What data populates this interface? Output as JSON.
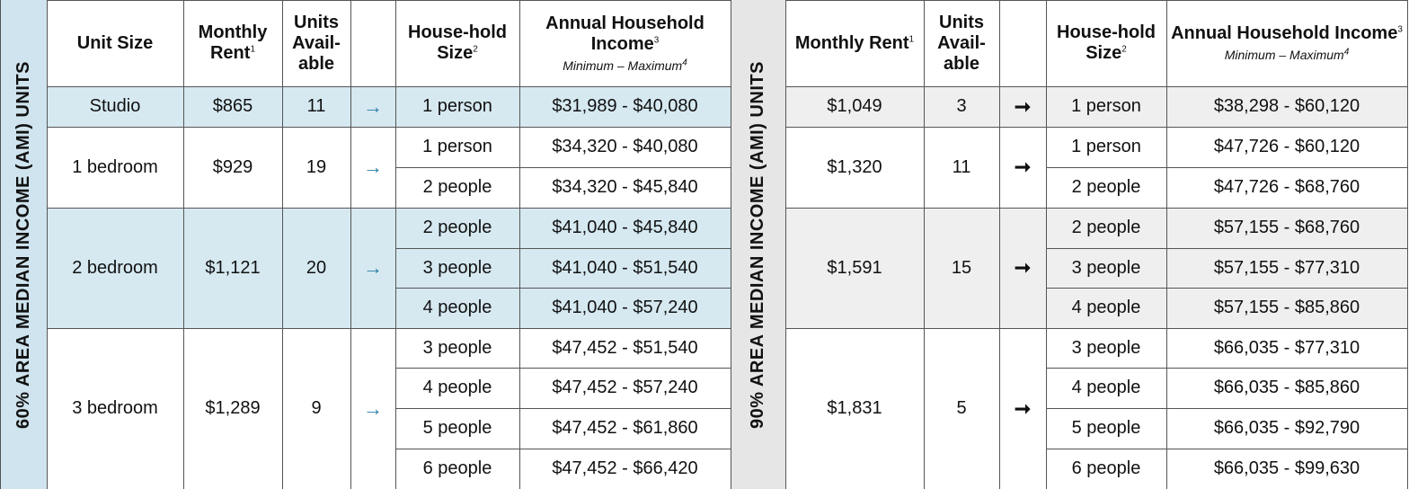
{
  "headers": {
    "unit_size": "Unit Size",
    "monthly_rent": "Monthly Rent",
    "units_available": "Units Avail-able",
    "units_l1": "Units",
    "units_l2": "Avail-",
    "units_l3": "able",
    "household_size": "House-hold Size",
    "annual_income": "Annual Household Income",
    "income_range": "Minimum – Maximum",
    "footnotes": {
      "rent": "1",
      "household": "2",
      "income": "3",
      "range": "4"
    }
  },
  "tier60": {
    "label": "60%  AREA MEDIAN INCOME (AMI) UNITS",
    "arrow": "→",
    "units": [
      {
        "size": "Studio",
        "rent": "$865",
        "available": "11",
        "households": [
          {
            "size": "1 person",
            "income": "$31,989 - $40,080"
          }
        ]
      },
      {
        "size": "1 bedroom",
        "rent": "$929",
        "available": "19",
        "households": [
          {
            "size": "1 person",
            "income": "$34,320 - $40,080"
          },
          {
            "size": "2 people",
            "income": "$34,320 - $45,840"
          }
        ]
      },
      {
        "size": "2 bedroom",
        "rent": "$1,121",
        "available": "20",
        "households": [
          {
            "size": "2 people",
            "income": "$41,040 - $45,840"
          },
          {
            "size": "3 people",
            "income": "$41,040 - $51,540"
          },
          {
            "size": "4 people",
            "income": "$41,040 - $57,240"
          }
        ]
      },
      {
        "size": "3 bedroom",
        "rent": "$1,289",
        "available": "9",
        "households": [
          {
            "size": "3 people",
            "income": "$47,452 - $51,540"
          },
          {
            "size": "4 people",
            "income": "$47,452 - $57,240"
          },
          {
            "size": "5 people",
            "income": "$47,452 - $61,860"
          },
          {
            "size": "6 people",
            "income": "$47,452 - $66,420"
          }
        ]
      }
    ]
  },
  "tier90": {
    "label": "90%  AREA MEDIAN INCOME (AMI) UNITS",
    "arrow": "➞",
    "units": [
      {
        "rent": "$1,049",
        "available": "3",
        "households": [
          {
            "size": "1 person",
            "income": "$38,298 - $60,120"
          }
        ]
      },
      {
        "rent": "$1,320",
        "available": "11",
        "households": [
          {
            "size": "1 person",
            "income": "$47,726 - $60,120"
          },
          {
            "size": "2 people",
            "income": "$47,726 - $68,760"
          }
        ]
      },
      {
        "rent": "$1,591",
        "available": "15",
        "households": [
          {
            "size": "2 people",
            "income": "$57,155 - $68,760"
          },
          {
            "size": "3 people",
            "income": "$57,155 - $77,310"
          },
          {
            "size": "4 people",
            "income": "$57,155 - $85,860"
          }
        ]
      },
      {
        "rent": "$1,831",
        "available": "5",
        "households": [
          {
            "size": "3 people",
            "income": "$66,035 - $77,310"
          },
          {
            "size": "4 people",
            "income": "$66,035 - $85,860"
          },
          {
            "size": "5 people",
            "income": "$66,035 - $92,790"
          },
          {
            "size": "6 people",
            "income": "$66,035 - $99,630"
          }
        ]
      }
    ]
  },
  "colors": {
    "tier60_highlight": "#d6e9f1",
    "tier60_label_bg": "#cfe4ee",
    "tier90_highlight": "#efefef",
    "tier90_label_bg": "#e6e6e6",
    "arrow60": "#2a7fa7",
    "grid": "#555555"
  }
}
